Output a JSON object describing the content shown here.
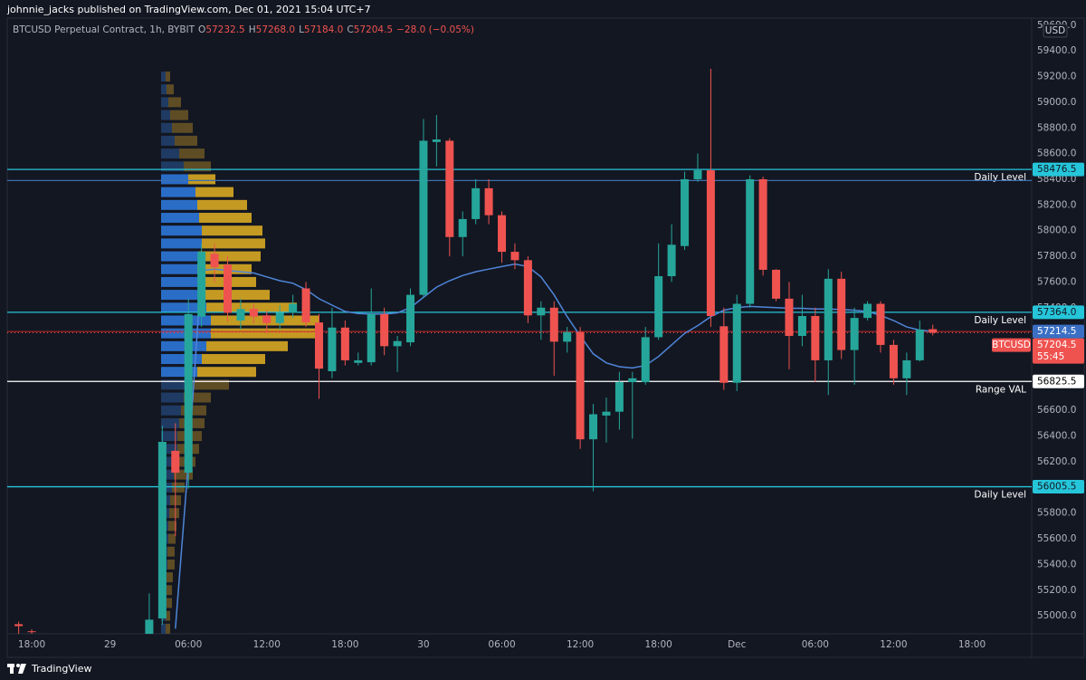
{
  "header": {
    "publisher": "johnnie_jacks published on TradingView.com, Dec 01, 2021 15:04 UTC+7"
  },
  "footer": {
    "brand": "TradingView"
  },
  "chart_data": {
    "type": "candlestick",
    "title": "BTCUSD Perpetual Contract, 1h, BYBIT",
    "ohlc_header": {
      "items": [
        {
          "key": "O",
          "text": "57232.5"
        },
        {
          "key": "H",
          "text": "57268.0"
        },
        {
          "key": "L",
          "text": "57184.0"
        },
        {
          "key": "C",
          "text": "57204.5"
        }
      ],
      "change": "−28.0 (−0.05%)"
    },
    "currency": "USD",
    "categories": [
      null,
      "18:00",
      null,
      null,
      null,
      null,
      null,
      "29",
      null,
      null,
      null,
      null,
      null,
      "06:00",
      null,
      null,
      null,
      null,
      null,
      "12:00",
      null,
      null,
      null,
      null,
      null,
      "18:00",
      null,
      null,
      null,
      null,
      null,
      "30",
      null,
      null,
      null,
      null,
      null,
      "06:00",
      null,
      null,
      null,
      null,
      null,
      "12:00",
      null,
      null,
      null,
      null,
      null,
      "18:00",
      null,
      null,
      null,
      null,
      null,
      "Dec",
      null,
      null,
      null,
      null,
      null,
      "06:00",
      null,
      null,
      null,
      null,
      null,
      "12:00",
      null,
      null,
      null,
      null,
      null,
      "18:00"
    ],
    "open": [
      54935,
      54880,
      null,
      null,
      null,
      null,
      null,
      null,
      null,
      null,
      54860,
      54980,
      56285,
      56115,
      57330,
      57820,
      57735,
      57300,
      57390,
      57340,
      57280,
      57360,
      57550,
      57285,
      56905,
      57245,
      56970,
      56975,
      57350,
      57100,
      57130,
      57500,
      58690,
      58700,
      57950,
      58090,
      58330,
      58120,
      57835,
      57770,
      57340,
      57400,
      57135,
      57210,
      56375,
      56560,
      56590,
      56820,
      56820,
      57170,
      57645,
      57880,
      58400,
      58470,
      57255,
      56815,
      57430,
      58400,
      57695,
      57470,
      57180,
      57335,
      56990,
      57625,
      57070,
      57320,
      57430,
      57110,
      56850,
      56990,
      57232.5,
      null,
      null,
      null
    ],
    "high": [
      54955,
      54895,
      null,
      null,
      null,
      null,
      null,
      null,
      null,
      null,
      55175,
      56480,
      56500,
      57470,
      57900,
      57900,
      57800,
      57470,
      57430,
      57380,
      57420,
      57500,
      57600,
      57350,
      57400,
      57300,
      57050,
      57550,
      57400,
      57180,
      57550,
      58870,
      58900,
      58720,
      58150,
      58400,
      58400,
      58150,
      57900,
      57800,
      57450,
      57450,
      57250,
      57250,
      56650,
      56700,
      56900,
      56900,
      57250,
      57900,
      58050,
      58460,
      58600,
      59260,
      57400,
      57500,
      58430,
      58420,
      57700,
      57600,
      57500,
      57400,
      57700,
      57680,
      57400,
      57450,
      57450,
      57150,
      57050,
      57300,
      57268,
      null,
      null,
      null
    ],
    "low": [
      54860,
      54860,
      null,
      null,
      null,
      null,
      null,
      null,
      null,
      null,
      54860,
      54930,
      55620,
      55990,
      57250,
      57600,
      57290,
      57230,
      57280,
      57200,
      57230,
      57320,
      57250,
      56690,
      56850,
      56950,
      56950,
      56950,
      57030,
      56900,
      57100,
      57480,
      58500,
      57800,
      57800,
      58050,
      58050,
      57750,
      57700,
      57280,
      57150,
      56870,
      57050,
      56300,
      55970,
      56350,
      56450,
      56380,
      56800,
      57150,
      57600,
      57850,
      58380,
      57250,
      56760,
      56750,
      57400,
      57650,
      57450,
      56920,
      57100,
      56820,
      56720,
      57000,
      56800,
      57300,
      57050,
      56800,
      56720,
      56980,
      57184,
      null,
      null,
      null
    ],
    "close": [
      54920,
      54875,
      null,
      null,
      null,
      null,
      null,
      null,
      null,
      null,
      54970,
      56355,
      56115,
      57350,
      57835,
      57715,
      57360,
      57390,
      57330,
      57280,
      57360,
      57430,
      57285,
      56925,
      57245,
      56990,
      56990,
      57350,
      57100,
      57140,
      57500,
      58700,
      58710,
      57950,
      58090,
      58330,
      58120,
      57835,
      57770,
      57340,
      57400,
      57135,
      57210,
      56375,
      56570,
      56590,
      56820,
      56850,
      57170,
      57645,
      57890,
      58400,
      58470,
      57335,
      56815,
      57430,
      58400,
      57695,
      57470,
      57180,
      57335,
      56990,
      57625,
      57070,
      57320,
      57430,
      57110,
      56850,
      56990,
      57230,
      57204.5,
      null,
      null,
      null
    ],
    "up_color": "#26a69a",
    "down_color": "#ef5350",
    "indicator": {
      "color": "#4f86d9",
      "values": [
        null,
        null,
        null,
        null,
        null,
        null,
        null,
        null,
        null,
        null,
        null,
        null,
        54900,
        56200,
        57690,
        57700,
        57690,
        57680,
        57670,
        57640,
        57610,
        57590,
        57540,
        57470,
        57420,
        57370,
        57355,
        57350,
        57350,
        57360,
        57400,
        57480,
        57560,
        57610,
        57650,
        57680,
        57700,
        57720,
        57740,
        57720,
        57640,
        57500,
        57330,
        57180,
        57040,
        56970,
        56940,
        56930,
        56950,
        57020,
        57110,
        57200,
        57260,
        57330,
        57380,
        57400,
        57410,
        57405,
        57400,
        57395,
        57395,
        57390,
        57390,
        57385,
        57380,
        57370,
        57340,
        57300,
        57250,
        57225,
        57215,
        null,
        null,
        null
      ]
    },
    "ylim": [
      54860,
      59655
    ],
    "yticks": [
      {
        "value": 55000,
        "label": "55000.0"
      },
      {
        "value": 55200,
        "label": "55200.0"
      },
      {
        "value": 55400,
        "label": "55400.0"
      },
      {
        "value": 55600,
        "label": "55600.0"
      },
      {
        "value": 55800,
        "label": "55800.0"
      },
      {
        "value": 56000,
        "label": "56000.0"
      },
      {
        "value": 56200,
        "label": "56200.0"
      },
      {
        "value": 56400,
        "label": "56400.0"
      },
      {
        "value": 56600,
        "label": "56600.0"
      },
      {
        "value": 56800,
        "label": "56800.0"
      },
      {
        "value": 57000,
        "label": "57000.0"
      },
      {
        "value": 57200,
        "label": "57200.0"
      },
      {
        "value": 57400,
        "label": "57400.0"
      },
      {
        "value": 57600,
        "label": "57600.0"
      },
      {
        "value": 57800,
        "label": "57800.0"
      },
      {
        "value": 58000,
        "label": "58000.0"
      },
      {
        "value": 58200,
        "label": "58200.0"
      },
      {
        "value": 58400,
        "label": "58400.0"
      },
      {
        "value": 58600,
        "label": "58600.0"
      },
      {
        "value": 58800,
        "label": "58800.0"
      },
      {
        "value": 59000,
        "label": "59000.0"
      },
      {
        "value": 59200,
        "label": "59200.0"
      },
      {
        "value": 59400,
        "label": "59400.0"
      },
      {
        "value": 59600,
        "label": "59600.0"
      }
    ],
    "levels": [
      {
        "value": 58476.5,
        "tag": "58476.5",
        "label": "Daily Level",
        "color": "#26c6da"
      },
      {
        "value": 58390,
        "color": "#3d6fae"
      },
      {
        "value": 57364,
        "tag": "57364.0",
        "label": "Daily Level",
        "color": "#26c6da"
      },
      {
        "value": 56825.5,
        "tag": "56825.5",
        "label": "Range VAL",
        "color": "#ffffff"
      },
      {
        "value": 56005.5,
        "tag": "56005.5",
        "label": "Daily Level",
        "color": "#26c6da"
      }
    ],
    "price_markers": [
      {
        "value": 57214.5,
        "tag": "57214.5",
        "color": "#3a6fc4",
        "line_color": "#c62828"
      },
      {
        "value": 57204.5,
        "tag": "57204.5",
        "symbol": "BTCUSD",
        "countdown": "55:45",
        "color": "#ef5350",
        "line_color": "#ef5350"
      }
    ],
    "volume_profile": {
      "prices": [
        54900,
        55000,
        55100,
        55200,
        55300,
        55400,
        55500,
        55600,
        55700,
        55800,
        55900,
        56000,
        56100,
        56200,
        56300,
        56400,
        56500,
        56600,
        56700,
        56800,
        56900,
        57000,
        57100,
        57200,
        57300,
        57400,
        57500,
        57600,
        57700,
        57800,
        57900,
        58000,
        58100,
        58200,
        58300,
        58400,
        58500,
        58600,
        58700,
        58800,
        58900,
        59000,
        59100,
        59200
      ],
      "buy": [
        5,
        5,
        6,
        6,
        6,
        7,
        7,
        8,
        8,
        9,
        10,
        12,
        14,
        16,
        18,
        18,
        20,
        22,
        25,
        30,
        40,
        45,
        50,
        55,
        55,
        50,
        45,
        42,
        40,
        42,
        45,
        45,
        42,
        40,
        38,
        30,
        25,
        20,
        15,
        12,
        10,
        8,
        6,
        5
      ],
      "sell": [
        5,
        5,
        6,
        6,
        7,
        8,
        8,
        8,
        9,
        11,
        12,
        14,
        21,
        22,
        24,
        27,
        28,
        28,
        30,
        45,
        65,
        70,
        90,
        115,
        120,
        100,
        75,
        63,
        60,
        68,
        70,
        67,
        58,
        55,
        42,
        30,
        30,
        28,
        25,
        23,
        20,
        14,
        8,
        5
      ],
      "value_area": [
        56825.5,
        58476.5
      ],
      "colors": {
        "buy": "#2a6dc7",
        "sell": "#c49a22",
        "buy_outside": "#203b63",
        "sell_outside": "#5e4c24"
      }
    }
  }
}
